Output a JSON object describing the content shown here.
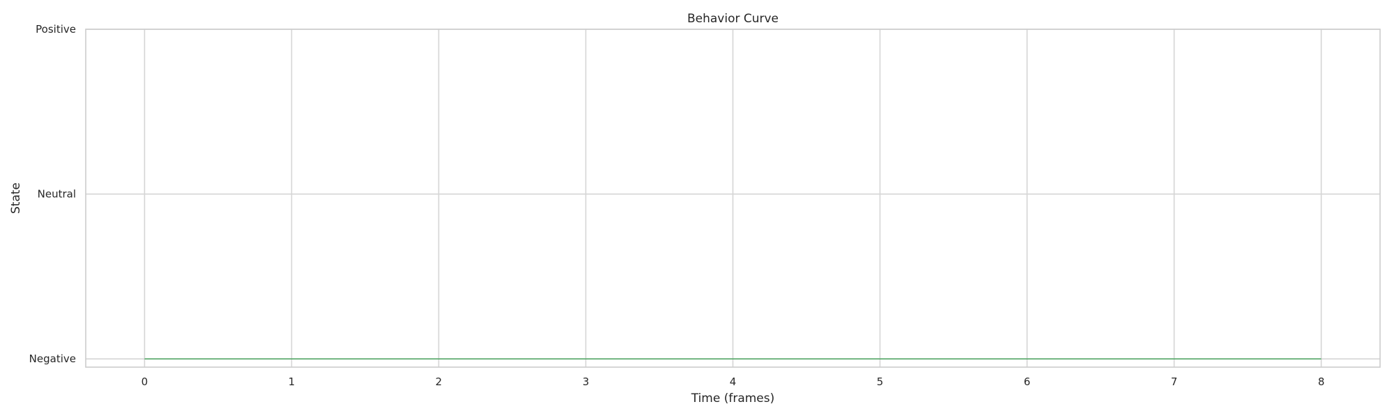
{
  "chart_data": {
    "type": "line",
    "title": "Behavior Curve",
    "xlabel": "Time (frames)",
    "ylabel": "State",
    "x": [
      0,
      1,
      2,
      3,
      4,
      5,
      6,
      7,
      8
    ],
    "xlim": [
      -0.4,
      8.4
    ],
    "xticks": [
      0,
      1,
      2,
      3,
      4,
      5,
      6,
      7,
      8
    ],
    "y_categories": [
      "Negative",
      "Neutral",
      "Positive"
    ],
    "ylim": [
      -0.05,
      2
    ],
    "grid": true,
    "series": [
      {
        "values": [
          0,
          0,
          0,
          0,
          0,
          0,
          0,
          0,
          0
        ],
        "color": "#55a868"
      }
    ]
  }
}
